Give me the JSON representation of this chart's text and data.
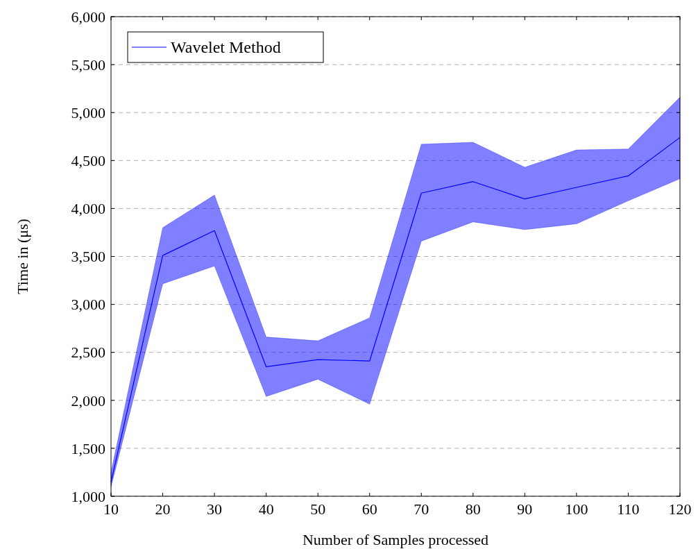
{
  "chart_data": {
    "type": "line",
    "xlabel": "Number of Samples processed",
    "ylabel": "Time in (μs)",
    "x": [
      10,
      20,
      30,
      40,
      50,
      60,
      70,
      80,
      90,
      100,
      110,
      120
    ],
    "series": [
      {
        "name": "Wavelet Method",
        "color": "#0000ff",
        "values": [
          1150,
          3510,
          3770,
          2350,
          2425,
          2410,
          4160,
          4280,
          4100,
          4220,
          4340,
          4740
        ],
        "lower": [
          1100,
          3215,
          3400,
          2040,
          2220,
          1960,
          3660,
          3860,
          3780,
          3840,
          4080,
          4310
        ],
        "upper": [
          1250,
          3800,
          4140,
          2660,
          2620,
          2860,
          4670,
          4690,
          4430,
          4610,
          4620,
          5160
        ]
      }
    ],
    "xlim": [
      10,
      120
    ],
    "xticks": [
      10,
      20,
      30,
      40,
      50,
      60,
      70,
      80,
      90,
      100,
      110,
      120
    ],
    "ylim": [
      1000,
      6000
    ],
    "yticks": [
      {
        "value": 1000,
        "label": "1,000"
      },
      {
        "value": 1500,
        "label": "1,500"
      },
      {
        "value": 2000,
        "label": "2,000"
      },
      {
        "value": 2500,
        "label": "2,500"
      },
      {
        "value": 3000,
        "label": "3,000"
      },
      {
        "value": 3500,
        "label": "3,500"
      },
      {
        "value": 4000,
        "label": "4,000"
      },
      {
        "value": 4500,
        "label": "4,500"
      },
      {
        "value": 5000,
        "label": "5,000"
      },
      {
        "value": 5500,
        "label": "5,500"
      },
      {
        "value": 6000,
        "label": "6,000"
      }
    ],
    "grid": "y",
    "legend": "top left",
    "marker": "none",
    "line_style": "solid"
  }
}
